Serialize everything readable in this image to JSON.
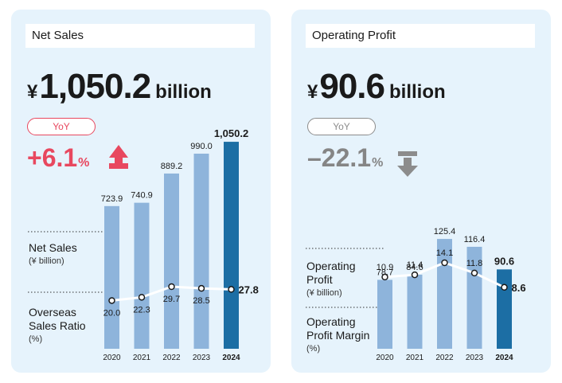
{
  "colors": {
    "panel_bg": "#e6f3fc",
    "bar": "#8eb4db",
    "bar_highlight": "#1c6ea4",
    "up": "#e8485f",
    "down": "#8c8c8c",
    "line": "#ffffff"
  },
  "panels": [
    {
      "title": "Net Sales",
      "big_figure": {
        "currency": "¥",
        "value": "1,050.2",
        "unit": "billion"
      },
      "yoy": {
        "label": "YoY",
        "value": "+6.1",
        "unit": "%",
        "direction": "up-arrow-icon"
      },
      "legend": [
        {
          "label": "Net Sales",
          "sub": "(¥ billion)"
        },
        {
          "label": "Overseas Sales Ratio",
          "sub": "(%)"
        }
      ]
    },
    {
      "title": "Operating Profit",
      "big_figure": {
        "currency": "¥",
        "value": "90.6",
        "unit": "billion"
      },
      "yoy": {
        "label": "YoY",
        "value": "–22.1",
        "unit": "%",
        "direction": "down-arrow-icon"
      },
      "legend": [
        {
          "label": "Operating Profit",
          "sub": "(¥ billion)"
        },
        {
          "label": "Operating Profit Margin",
          "sub": "(%)"
        }
      ]
    }
  ],
  "chart_data": [
    {
      "type": "bar",
      "title": "Net Sales",
      "categories": [
        "2020",
        "2021",
        "2022",
        "2023",
        "2024"
      ],
      "series": [
        {
          "name": "Net Sales",
          "unit": "¥ billion",
          "kind": "bar",
          "values": [
            723.9,
            740.9,
            889.2,
            990.0,
            1050.2
          ],
          "labels": [
            "723.9",
            "740.9",
            "889.2",
            "990.0",
            "1,050.2"
          ]
        },
        {
          "name": "Overseas Sales Ratio",
          "unit": "%",
          "kind": "line",
          "values": [
            20.0,
            22.3,
            29.7,
            28.5,
            27.8
          ],
          "labels": [
            "20.0",
            "22.3",
            "29.7",
            "28.5",
            "27.8"
          ]
        }
      ],
      "highlight": "2024"
    },
    {
      "type": "bar",
      "title": "Operating Profit",
      "categories": [
        "2020",
        "2021",
        "2022",
        "2023",
        "2024"
      ],
      "series": [
        {
          "name": "Operating Profit",
          "unit": "¥ billion",
          "kind": "bar",
          "values": [
            78.7,
            84.6,
            125.4,
            116.4,
            90.6
          ],
          "labels": [
            "78.7",
            "84.6",
            "125.4",
            "116.4",
            "90.6"
          ]
        },
        {
          "name": "Operating Profit Margin",
          "unit": "%",
          "kind": "line",
          "values": [
            10.9,
            11.4,
            14.1,
            11.8,
            8.6
          ],
          "labels": [
            "10.9",
            "11.4",
            "14.1",
            "11.8",
            "8.6"
          ]
        }
      ],
      "highlight": "2024"
    }
  ]
}
